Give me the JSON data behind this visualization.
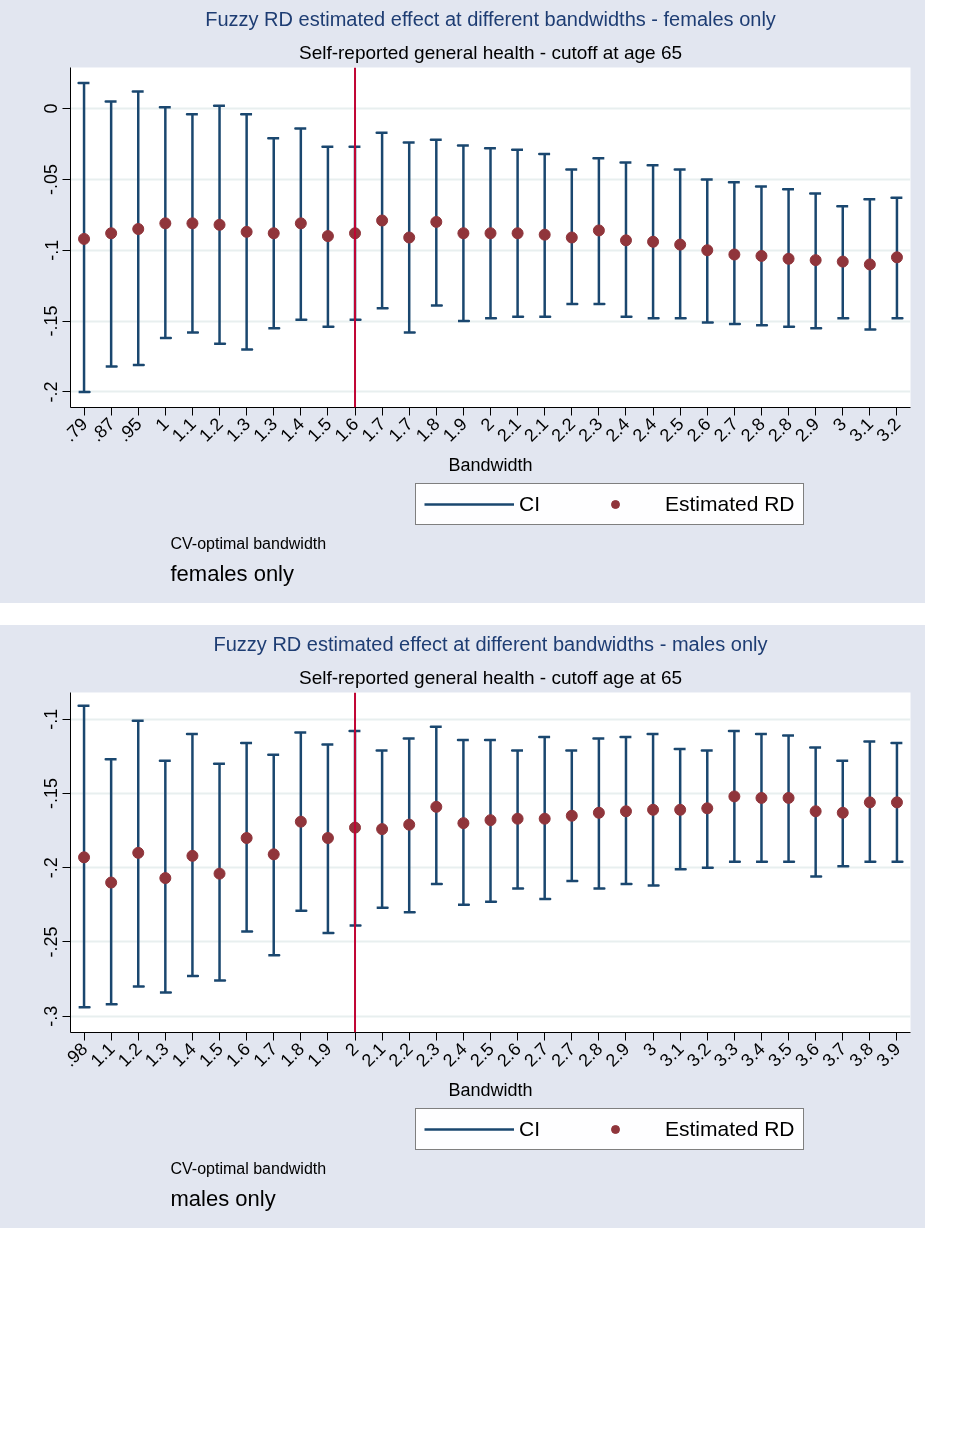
{
  "chart_data": [
    {
      "type": "scatter",
      "title": "Fuzzy RD estimated effect at different bandwidths - females only",
      "subtitle": "Self-reported general health - cutoff at age 65",
      "xlabel": "Bandwidth",
      "categories": [
        ".79",
        ".87",
        ".95",
        "1",
        "1.1",
        "1.2",
        "1.3",
        "1.3",
        "1.4",
        "1.5",
        "1.6",
        "1.7",
        "1.7",
        "1.8",
        "1.9",
        "2",
        "2.1",
        "2.1",
        "2.2",
        "2.3",
        "2.4",
        "2.4",
        "2.5",
        "2.6",
        "2.7",
        "2.8",
        "2.8",
        "2.9",
        "3",
        "3.1",
        "3.2"
      ],
      "series": [
        {
          "name": "Estimated RD",
          "color": "#90353b",
          "values": [
            -0.092,
            -0.088,
            -0.085,
            -0.081,
            -0.081,
            -0.082,
            -0.087,
            -0.088,
            -0.081,
            -0.09,
            -0.088,
            -0.079,
            -0.091,
            -0.08,
            -0.088,
            -0.088,
            -0.088,
            -0.089,
            -0.091,
            -0.086,
            -0.093,
            -0.094,
            -0.096,
            -0.1,
            -0.103,
            -0.104,
            -0.106,
            -0.107,
            -0.108,
            -0.11,
            -0.105
          ],
          "errors": [
            [
              -0.2,
              0.018
            ],
            [
              -0.182,
              0.005
            ],
            [
              -0.181,
              0.012
            ],
            [
              -0.162,
              0.001
            ],
            [
              -0.158,
              -0.004
            ],
            [
              -0.166,
              0.002
            ],
            [
              -0.17,
              -0.004
            ],
            [
              -0.155,
              -0.021
            ],
            [
              -0.149,
              -0.014
            ],
            [
              -0.154,
              -0.027
            ],
            [
              -0.149,
              -0.027
            ],
            [
              -0.141,
              -0.017
            ],
            [
              -0.158,
              -0.024
            ],
            [
              -0.139,
              -0.022
            ],
            [
              -0.15,
              -0.026
            ],
            [
              -0.148,
              -0.028
            ],
            [
              -0.147,
              -0.029
            ],
            [
              -0.147,
              -0.032
            ],
            [
              -0.138,
              -0.043
            ],
            [
              -0.138,
              -0.035
            ],
            [
              -0.147,
              -0.038
            ],
            [
              -0.148,
              -0.04
            ],
            [
              -0.148,
              -0.043
            ],
            [
              -0.151,
              -0.05
            ],
            [
              -0.152,
              -0.052
            ],
            [
              -0.153,
              -0.055
            ],
            [
              -0.154,
              -0.057
            ],
            [
              -0.155,
              -0.06
            ],
            [
              -0.148,
              -0.069
            ],
            [
              -0.156,
              -0.064
            ],
            [
              -0.148,
              -0.063
            ]
          ]
        }
      ],
      "ylim": [
        -0.211,
        0.029
      ],
      "yticks": [
        {
          "value": -0.2,
          "label": "-.2"
        },
        {
          "value": -0.15,
          "label": "-.15"
        },
        {
          "value": -0.1,
          "label": "-.1"
        },
        {
          "value": -0.05,
          "label": "-.05"
        },
        0
      ],
      "ref_lines": [
        {
          "axis": "x",
          "value": "1.6",
          "color": "#c10534"
        }
      ],
      "grid": "y",
      "legend": "bottom",
      "marker": "circle",
      "annotations": [
        "CI",
        "CV-optimal bandwidth",
        "females only"
      ]
    },
    {
      "type": "scatter",
      "title": "Fuzzy RD estimated effect at different bandwidths - males only",
      "subtitle": "Self-reported general health - cutoff age at 65",
      "xlabel": "Bandwidth",
      "categories": [
        ".98",
        "1.1",
        "1.2",
        "1.3",
        "1.4",
        "1.5",
        "1.6",
        "1.7",
        "1.8",
        "1.9",
        "2",
        "2.1",
        "2.2",
        "2.3",
        "2.4",
        "2.5",
        "2.6",
        "2.7",
        "2.7",
        "2.8",
        "2.9",
        "3",
        "3.1",
        "3.2",
        "3.3",
        "3.4",
        "3.5",
        "3.6",
        "3.7",
        "3.8",
        "3.9"
      ],
      "series": [
        {
          "name": "Estimated RD",
          "color": "#90353b",
          "values": [
            -0.193,
            -0.21,
            -0.19,
            -0.207,
            -0.192,
            -0.204,
            -0.18,
            -0.191,
            -0.169,
            -0.18,
            -0.173,
            -0.174,
            -0.171,
            -0.159,
            -0.17,
            -0.168,
            -0.167,
            -0.167,
            -0.165,
            -0.163,
            -0.162,
            -0.161,
            -0.161,
            -0.16,
            -0.152,
            -0.153,
            -0.153,
            -0.162,
            -0.163,
            -0.156,
            -0.156
          ],
          "errors": [
            [
              -0.294,
              -0.091
            ],
            [
              -0.292,
              -0.127
            ],
            [
              -0.28,
              -0.101
            ],
            [
              -0.284,
              -0.128
            ],
            [
              -0.273,
              -0.11
            ],
            [
              -0.276,
              -0.13
            ],
            [
              -0.243,
              -0.116
            ],
            [
              -0.259,
              -0.124
            ],
            [
              -0.229,
              -0.109
            ],
            [
              -0.244,
              -0.117
            ],
            [
              -0.239,
              -0.108
            ],
            [
              -0.227,
              -0.121
            ],
            [
              -0.23,
              -0.113
            ],
            [
              -0.211,
              -0.105
            ],
            [
              -0.225,
              -0.114
            ],
            [
              -0.223,
              -0.114
            ],
            [
              -0.214,
              -0.121
            ],
            [
              -0.221,
              -0.112
            ],
            [
              -0.209,
              -0.121
            ],
            [
              -0.214,
              -0.113
            ],
            [
              -0.211,
              -0.112
            ],
            [
              -0.212,
              -0.11
            ],
            [
              -0.201,
              -0.12
            ],
            [
              -0.2,
              -0.121
            ],
            [
              -0.196,
              -0.108
            ],
            [
              -0.196,
              -0.11
            ],
            [
              -0.196,
              -0.111
            ],
            [
              -0.206,
              -0.119
            ],
            [
              -0.199,
              -0.128
            ],
            [
              -0.196,
              -0.115
            ],
            [
              -0.196,
              -0.116
            ]
          ]
        }
      ],
      "ylim": [
        -0.311,
        -0.082
      ],
      "yticks": [
        {
          "value": -0.3,
          "label": "-.3"
        },
        {
          "value": -0.25,
          "label": "-.25"
        },
        {
          "value": -0.2,
          "label": "-.2"
        },
        {
          "value": -0.15,
          "label": "-.15"
        },
        {
          "value": -0.1,
          "label": "-.1"
        }
      ],
      "ref_lines": [
        {
          "axis": "x",
          "value": "2",
          "color": "#c10534"
        }
      ],
      "grid": "y",
      "legend": "bottom",
      "marker": "circle",
      "annotations": [
        "CI",
        "CV-optimal bandwidth",
        "males only"
      ]
    }
  ]
}
